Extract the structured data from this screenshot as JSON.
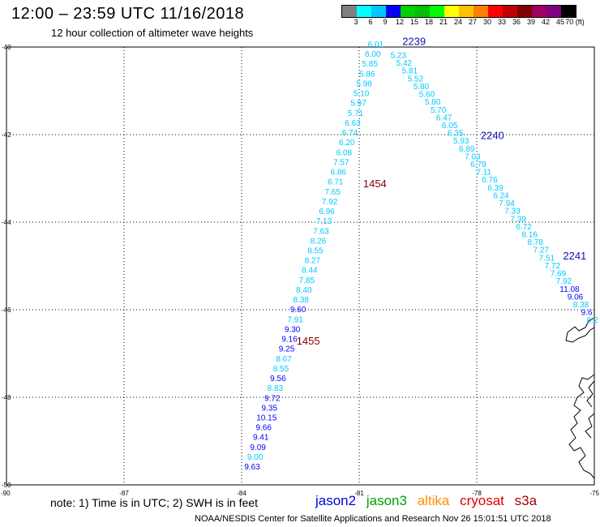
{
  "title": "12:00 – 23:59 UTC 11/16/2018",
  "subtitle": "12 hour collection of altimeter wave heights",
  "colorbar": {
    "colors": [
      "#808080",
      "#00ffff",
      "#00c8ff",
      "#0000ff",
      "#00d000",
      "#00c000",
      "#00ff00",
      "#ffff00",
      "#ffc000",
      "#ff8000",
      "#ff0000",
      "#c00000",
      "#800000",
      "#a00060",
      "#800080",
      "#000000"
    ],
    "labels": [
      "3",
      "6",
      "9",
      "12",
      "15",
      "18",
      "21",
      "24",
      "27",
      "30",
      "33",
      "36",
      "39",
      "42",
      "45",
      "70 (ft)"
    ]
  },
  "axes": {
    "lon_ticks": [
      "-90",
      "-87",
      "-84",
      "-81",
      "-78",
      "-75"
    ],
    "lat_ticks": [
      "-40",
      "-42",
      "-44",
      "-46",
      "-48",
      "-50"
    ]
  },
  "times": [
    {
      "text": "1454",
      "lon": -80.6,
      "lat": -43.2,
      "color": "#800000"
    },
    {
      "text": "1455",
      "lon": -82.3,
      "lat": -46.8,
      "color": "#800000"
    },
    {
      "text": "2239",
      "lon": -79.6,
      "lat": -39.95,
      "color": "#1010b0"
    },
    {
      "text": "2240",
      "lon": -77.6,
      "lat": -42.1,
      "color": "#1010b0"
    },
    {
      "text": "2241",
      "lon": -75.5,
      "lat": -44.85,
      "color": "#1010b0"
    }
  ],
  "swh_track1": {
    "values": [
      "9.63",
      "9.00",
      "9.09",
      "9.41",
      "9.66",
      "10.15",
      "9.35",
      "9.72",
      "8.83",
      "9.56",
      "8.55",
      "8.67",
      "9.25",
      "9.16",
      "9.30",
      "7.91",
      "9.60",
      "8.38",
      "8.40",
      "7.85",
      "8.44",
      "8.27",
      "8.55",
      "8.26",
      "7.63",
      "7.13",
      "6.96",
      "7.92",
      "7.65",
      "6.71",
      "6.86",
      "7.57",
      "6.08",
      "6.20",
      "6.74",
      "6.63",
      "5.71",
      "5.97",
      "5.10",
      "5.98",
      "5.86",
      "5.85",
      "6.00",
      "6.01"
    ],
    "colors": [
      "#0000ff",
      "#00c8ff",
      "#0000ff",
      "#0000ff",
      "#0000ff",
      "#0000ff",
      "#0000ff",
      "#0000ff",
      "#00c8ff",
      "#0000ff",
      "#00c8ff",
      "#00c8ff",
      "#0000ff",
      "#0000ff",
      "#0000ff",
      "#00c8ff",
      "#0000ff",
      "#00c8ff",
      "#00c8ff",
      "#00c8ff",
      "#00c8ff",
      "#00c8ff",
      "#00c8ff",
      "#00c8ff",
      "#00c8ff",
      "#00c8ff",
      "#00c8ff",
      "#00c8ff",
      "#00c8ff",
      "#00c8ff",
      "#00c8ff",
      "#00c8ff",
      "#00c8ff",
      "#00c8ff",
      "#00c8ff",
      "#00c8ff",
      "#00c8ff",
      "#00c8ff",
      "#00c8ff",
      "#00c8ff",
      "#00c8ff",
      "#00c8ff",
      "#00c8ff",
      "#00c8ff"
    ]
  },
  "swh_track2": {
    "values": [
      "5.23",
      "5.42",
      "5.81",
      "5.52",
      "5.80",
      "5.60",
      "5.80",
      "5.70",
      "6.47",
      "6.05",
      "6.35",
      "5.93",
      "6.89",
      "7.03",
      "6.79",
      "7.11",
      "6.76",
      "6.39",
      "6.24",
      "7.94",
      "7.33",
      "7.39",
      "6.72",
      "8.16",
      "8.78",
      "7.27",
      "7.51",
      "7.72",
      "7.69",
      "7.92",
      "11.08",
      "9.06",
      "8.38",
      "9.6",
      "8.2"
    ],
    "colors": [
      "#00c8ff",
      "#00c8ff",
      "#00c8ff",
      "#00c8ff",
      "#00c8ff",
      "#00c8ff",
      "#00c8ff",
      "#00c8ff",
      "#00c8ff",
      "#00c8ff",
      "#00c8ff",
      "#00c8ff",
      "#00c8ff",
      "#00c8ff",
      "#00c8ff",
      "#00c8ff",
      "#00c8ff",
      "#00c8ff",
      "#00c8ff",
      "#00c8ff",
      "#00c8ff",
      "#00c8ff",
      "#00c8ff",
      "#00c8ff",
      "#00c8ff",
      "#00c8ff",
      "#00c8ff",
      "#00c8ff",
      "#00c8ff",
      "#00c8ff",
      "#0000ff",
      "#0000ff",
      "#00c8ff",
      "#0000ff",
      "#00c8ff"
    ]
  },
  "note": "note: 1) Time is in UTC; 2) SWH is in feet",
  "legend": [
    {
      "text": "jason2",
      "color": "#0000e0"
    },
    {
      "text": "jason3",
      "color": "#00a000"
    },
    {
      "text": "altika",
      "color": "#ff9000"
    },
    {
      "text": "cryosat",
      "color": "#e00000"
    },
    {
      "text": "s3a",
      "color": "#a00000"
    }
  ],
  "footer": "NOAA/NESDIS Center for Satellite Applications and Research     Nov 26 15:01:51 UTC 2018"
}
